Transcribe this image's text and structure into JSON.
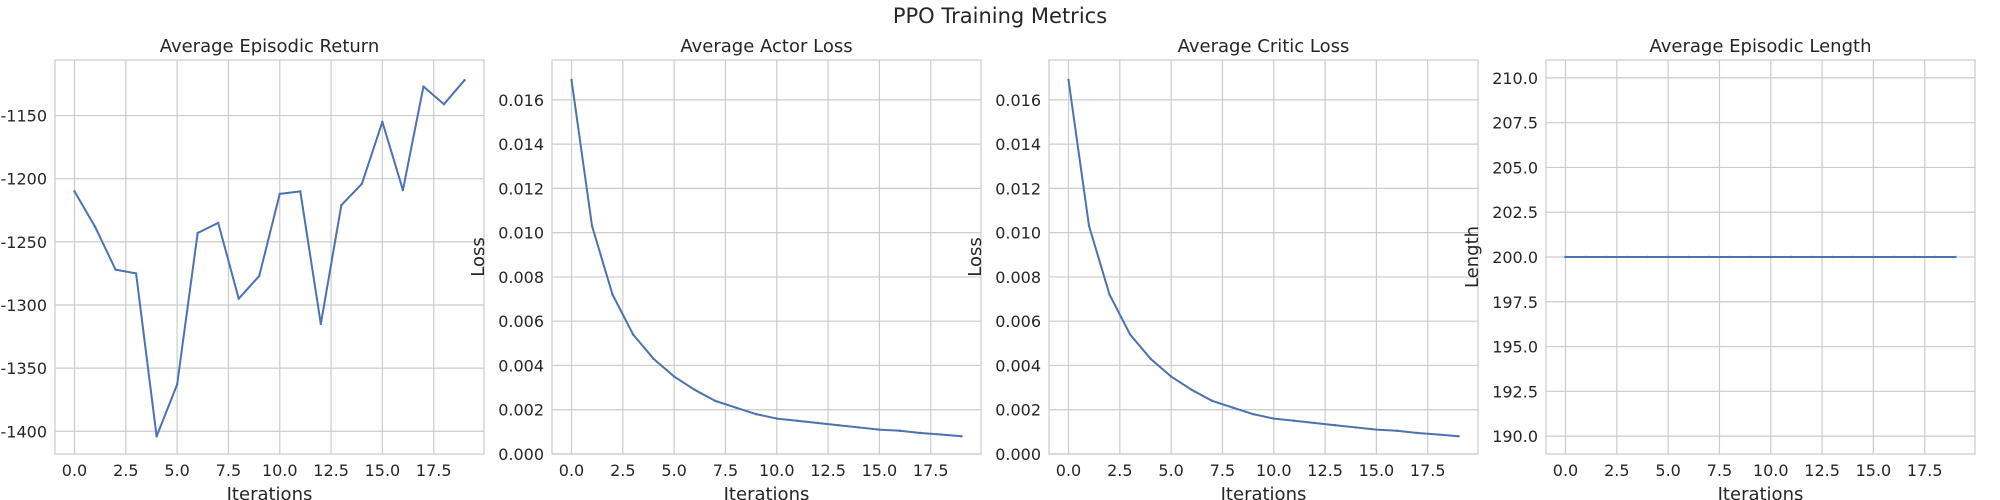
{
  "figure": {
    "suptitle": "PPO Training Metrics"
  },
  "colors": {
    "series": "#4c72b0",
    "grid": "#cccccc",
    "background": "#ffffff"
  },
  "chart_data": [
    {
      "type": "line",
      "title": "Average Episodic Return",
      "xlabel": "Iterations",
      "ylabel": "",
      "grid": true,
      "xlim": [
        -0.95,
        19.95
      ],
      "ylim": [
        -1418,
        -1106
      ],
      "xticks": [
        0,
        2.5,
        5,
        7.5,
        10,
        12.5,
        15,
        17.5
      ],
      "xtick_labels": [
        "0.0",
        "2.5",
        "5.0",
        "7.5",
        "10.0",
        "12.5",
        "15.0",
        "17.5"
      ],
      "yticks": [
        -1400,
        -1350,
        -1300,
        -1250,
        -1200,
        -1150
      ],
      "ytick_labels": [
        "-1400",
        "-1350",
        "-1300",
        "-1250",
        "-1200",
        "-1150"
      ],
      "x": [
        0,
        1,
        2,
        3,
        4,
        5,
        6,
        7,
        8,
        9,
        10,
        11,
        12,
        13,
        14,
        15,
        16,
        17,
        18,
        19
      ],
      "series": [
        {
          "values": [
            -1210,
            -1238,
            -1272,
            -1275,
            -1404,
            -1363,
            -1243,
            -1235,
            -1295,
            -1277,
            -1212,
            -1210,
            -1315,
            -1221,
            -1204,
            -1155,
            -1209,
            -1127,
            -1141,
            -1122
          ]
        }
      ]
    },
    {
      "type": "line",
      "title": "Average Actor Loss",
      "xlabel": "Iterations",
      "ylabel": "Loss",
      "grid": true,
      "xlim": [
        -0.95,
        19.95
      ],
      "ylim": [
        0,
        0.0178
      ],
      "xticks": [
        0,
        2.5,
        5,
        7.5,
        10,
        12.5,
        15,
        17.5
      ],
      "xtick_labels": [
        "0.0",
        "2.5",
        "5.0",
        "7.5",
        "10.0",
        "12.5",
        "15.0",
        "17.5"
      ],
      "yticks": [
        0,
        0.002,
        0.004,
        0.006,
        0.008,
        0.01,
        0.012,
        0.014,
        0.016
      ],
      "ytick_labels": [
        "0.000",
        "0.002",
        "0.004",
        "0.006",
        "0.008",
        "0.010",
        "0.012",
        "0.014",
        "0.016"
      ],
      "x": [
        0,
        1,
        2,
        3,
        4,
        5,
        6,
        7,
        8,
        9,
        10,
        11,
        12,
        13,
        14,
        15,
        16,
        17,
        18,
        19
      ],
      "series": [
        {
          "values": [
            0.0169,
            0.0103,
            0.0072,
            0.0054,
            0.0043,
            0.0035,
            0.0029,
            0.0024,
            0.0021,
            0.0018,
            0.0016,
            0.0015,
            0.0014,
            0.0013,
            0.0012,
            0.0011,
            0.00105,
            0.00095,
            0.00088,
            0.0008
          ]
        }
      ]
    },
    {
      "type": "line",
      "title": "Average Critic Loss",
      "xlabel": "Iterations",
      "ylabel": "Loss",
      "grid": true,
      "xlim": [
        -0.95,
        19.95
      ],
      "ylim": [
        0,
        0.0178
      ],
      "xticks": [
        0,
        2.5,
        5,
        7.5,
        10,
        12.5,
        15,
        17.5
      ],
      "xtick_labels": [
        "0.0",
        "2.5",
        "5.0",
        "7.5",
        "10.0",
        "12.5",
        "15.0",
        "17.5"
      ],
      "yticks": [
        0,
        0.002,
        0.004,
        0.006,
        0.008,
        0.01,
        0.012,
        0.014,
        0.016
      ],
      "ytick_labels": [
        "0.000",
        "0.002",
        "0.004",
        "0.006",
        "0.008",
        "0.010",
        "0.012",
        "0.014",
        "0.016"
      ],
      "x": [
        0,
        1,
        2,
        3,
        4,
        5,
        6,
        7,
        8,
        9,
        10,
        11,
        12,
        13,
        14,
        15,
        16,
        17,
        18,
        19
      ],
      "series": [
        {
          "values": [
            0.0169,
            0.0103,
            0.0072,
            0.0054,
            0.0043,
            0.0035,
            0.0029,
            0.0024,
            0.0021,
            0.0018,
            0.0016,
            0.0015,
            0.0014,
            0.0013,
            0.0012,
            0.0011,
            0.00105,
            0.00095,
            0.00088,
            0.0008
          ]
        }
      ]
    },
    {
      "type": "line",
      "title": "Average Episodic Length",
      "xlabel": "Iterations",
      "ylabel": "Length",
      "grid": true,
      "xlim": [
        -0.95,
        19.95
      ],
      "ylim": [
        189,
        211
      ],
      "xticks": [
        0,
        2.5,
        5,
        7.5,
        10,
        12.5,
        15,
        17.5
      ],
      "xtick_labels": [
        "0.0",
        "2.5",
        "5.0",
        "7.5",
        "10.0",
        "12.5",
        "15.0",
        "17.5"
      ],
      "yticks": [
        190,
        192.5,
        195,
        197.5,
        200,
        202.5,
        205,
        207.5,
        210
      ],
      "ytick_labels": [
        "190.0",
        "192.5",
        "195.0",
        "197.5",
        "200.0",
        "202.5",
        "205.0",
        "207.5",
        "210.0"
      ],
      "x": [
        0,
        1,
        2,
        3,
        4,
        5,
        6,
        7,
        8,
        9,
        10,
        11,
        12,
        13,
        14,
        15,
        16,
        17,
        18,
        19
      ],
      "series": [
        {
          "values": [
            200,
            200,
            200,
            200,
            200,
            200,
            200,
            200,
            200,
            200,
            200,
            200,
            200,
            200,
            200,
            200,
            200,
            200,
            200,
            200
          ]
        }
      ]
    }
  ]
}
